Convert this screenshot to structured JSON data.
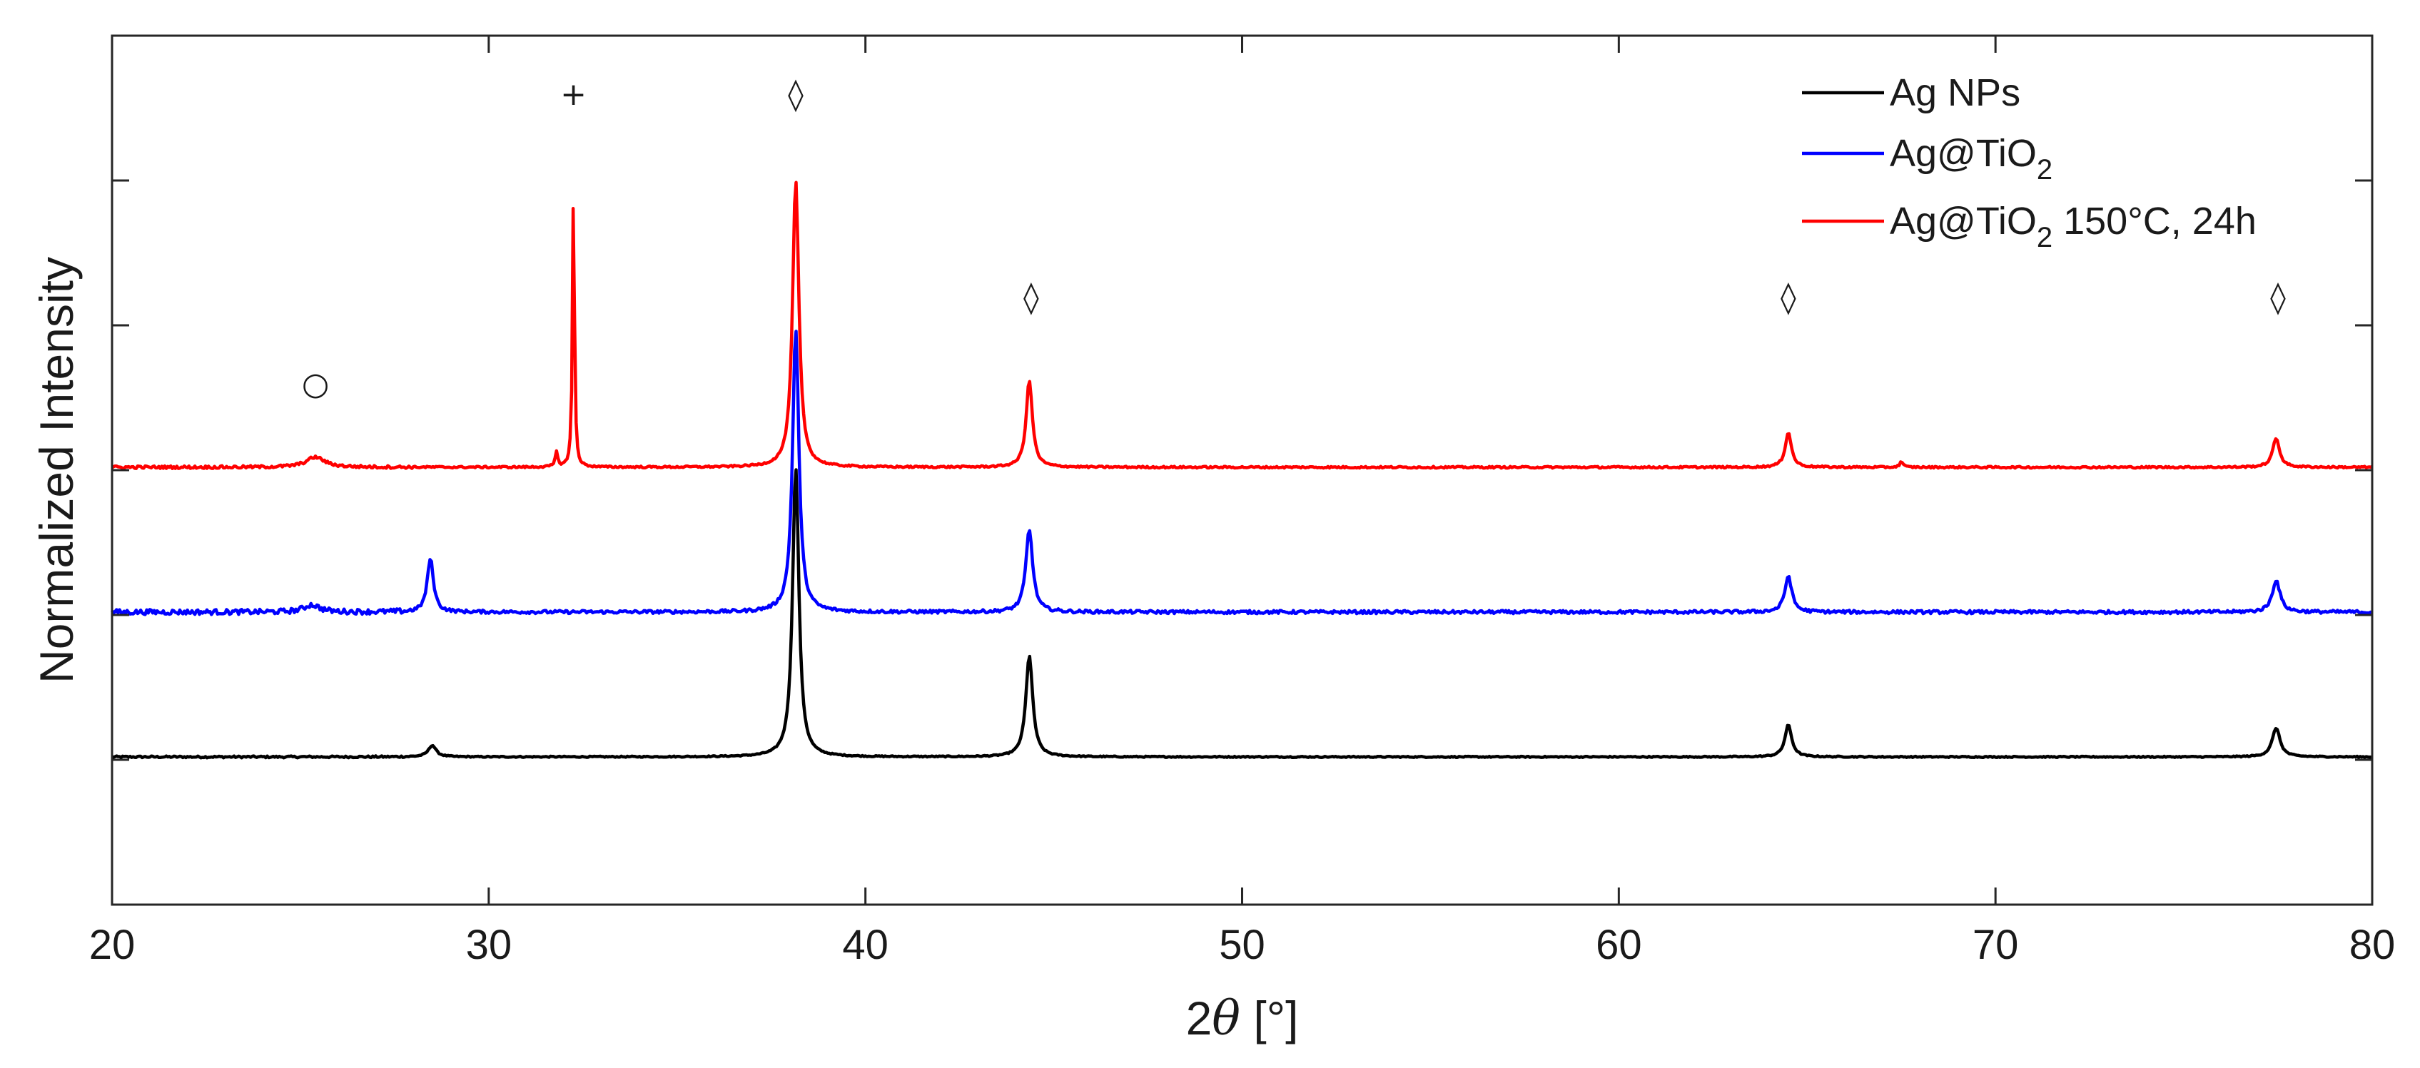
{
  "chart_data": {
    "type": "line",
    "xlabel": "2θ [°]",
    "xlabel_parts": {
      "var": "θ",
      "prefix": "2",
      "suffix": " [°]"
    },
    "ylabel": "Normalized Intensity",
    "xlim": [
      20,
      80
    ],
    "ylim": [
      0,
      6
    ],
    "x_ticks": [
      "20",
      "30",
      "40",
      "50",
      "60",
      "70",
      "80"
    ],
    "y_ticks_labeled": false,
    "grid": false,
    "legend_position": "top-right",
    "series": [
      {
        "name": "Ag NPs",
        "name_parts": {
          "main": "Ag NPs",
          "sub": "",
          "tail": ""
        },
        "color": "#000000",
        "baseline": 1.02,
        "peaks": [
          {
            "x": 28.5,
            "height": 0.08,
            "width": 0.25
          },
          {
            "x": 38.15,
            "height": 2.0,
            "width": 0.2
          },
          {
            "x": 44.35,
            "height": 0.7,
            "width": 0.22
          },
          {
            "x": 64.5,
            "height": 0.22,
            "width": 0.22
          },
          {
            "x": 77.45,
            "height": 0.2,
            "width": 0.25
          }
        ]
      },
      {
        "name": "Ag@TiO2",
        "name_parts": {
          "main": "Ag@TiO",
          "sub": "2",
          "tail": ""
        },
        "color": "#0000ff",
        "baseline": 2.02,
        "peaks": [
          {
            "x": 25.3,
            "height": 0.05,
            "width": 0.5
          },
          {
            "x": 28.45,
            "height": 0.37,
            "width": 0.2
          },
          {
            "x": 38.15,
            "height": 1.96,
            "width": 0.2
          },
          {
            "x": 44.35,
            "height": 0.57,
            "width": 0.22
          },
          {
            "x": 64.5,
            "height": 0.25,
            "width": 0.22
          },
          {
            "x": 77.45,
            "height": 0.22,
            "width": 0.25
          }
        ]
      },
      {
        "name": "Ag@TiO2 150°C, 24h",
        "name_parts": {
          "main": "Ag@TiO",
          "sub": "2",
          "tail": " 150°C, 24h"
        },
        "color": "#ff0000",
        "baseline": 3.02,
        "peaks": [
          {
            "x": 25.4,
            "height": 0.07,
            "width": 0.6
          },
          {
            "x": 31.8,
            "height": 0.1,
            "width": 0.08
          },
          {
            "x": 32.25,
            "height": 1.98,
            "width": 0.06
          },
          {
            "x": 38.15,
            "height": 1.98,
            "width": 0.2
          },
          {
            "x": 44.35,
            "height": 0.6,
            "width": 0.2
          },
          {
            "x": 64.5,
            "height": 0.24,
            "width": 0.2
          },
          {
            "x": 67.5,
            "height": 0.04,
            "width": 0.1
          },
          {
            "x": 77.45,
            "height": 0.2,
            "width": 0.22
          }
        ]
      }
    ],
    "annotations": [
      {
        "symbol": "○",
        "x": 25.4,
        "y": 3.6
      },
      {
        "symbol": "+",
        "x": 32.25,
        "y": 5.6
      },
      {
        "symbol": "◊",
        "x": 38.15,
        "y": 5.6
      },
      {
        "symbol": "◊",
        "x": 44.4,
        "y": 4.2
      },
      {
        "symbol": "◊",
        "x": 64.5,
        "y": 4.2
      },
      {
        "symbol": "◊",
        "x": 77.5,
        "y": 4.2
      }
    ]
  }
}
